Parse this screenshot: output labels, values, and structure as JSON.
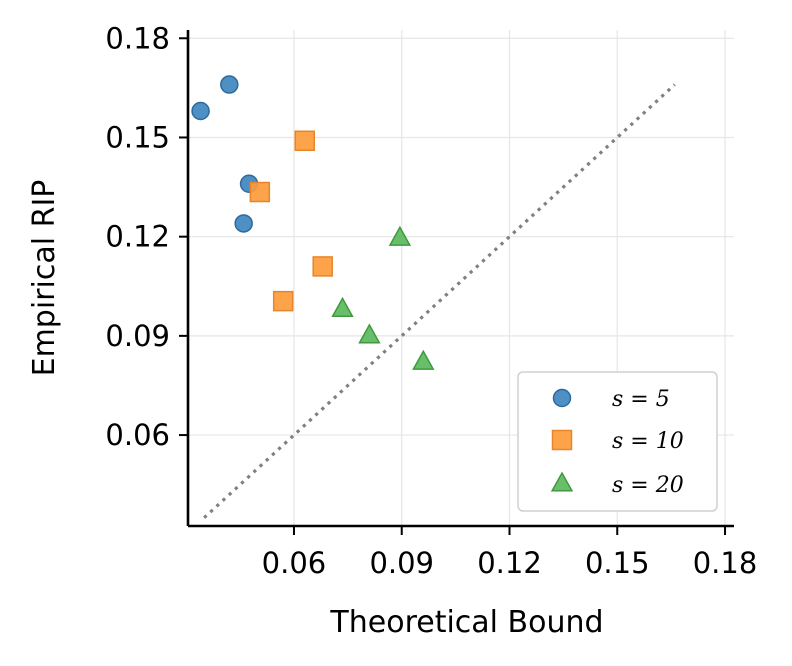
{
  "chart_data": {
    "type": "scatter",
    "title": "",
    "xlabel": "Theoretical Bound",
    "ylabel": "Empirical RIP",
    "xlim": [
      0.0305,
      0.1825
    ],
    "ylim": [
      0.0325,
      0.1825
    ],
    "xticks": [
      0.06,
      0.09,
      0.12,
      0.15,
      0.18
    ],
    "yticks": [
      0.06,
      0.09,
      0.12,
      0.15,
      0.18
    ],
    "xtick_labels": [
      "0.06",
      "0.09",
      "0.12",
      "0.15",
      "0.18"
    ],
    "ytick_labels": [
      "0.06",
      "0.09",
      "0.12",
      "0.15",
      "0.18"
    ],
    "grid": true,
    "legend_position": "lower-right",
    "reference_line": {
      "style": "dotted",
      "color": "#808080",
      "from": [
        0.035,
        0.035
      ],
      "to": [
        0.166,
        0.166
      ]
    },
    "series": [
      {
        "name": "s = 5",
        "marker": "circle",
        "color": "#3f86bf",
        "edge": "#2c6a9f",
        "x": [
          0.034,
          0.042,
          0.046,
          0.0475
        ],
        "y": [
          0.158,
          0.166,
          0.124,
          0.136
        ]
      },
      {
        "name": "s = 10",
        "marker": "square",
        "color": "#fd9b3a",
        "edge": "#e8852a",
        "x": [
          0.057,
          0.0505,
          0.063,
          0.068
        ],
        "y": [
          0.1005,
          0.1335,
          0.149,
          0.111
        ]
      },
      {
        "name": "s = 20",
        "marker": "triangle",
        "color": "#5cb85c",
        "edge": "#3f9a3f",
        "x": [
          0.0735,
          0.081,
          0.0895,
          0.096
        ],
        "y": [
          0.098,
          0.09,
          0.1195,
          0.082
        ]
      }
    ]
  }
}
